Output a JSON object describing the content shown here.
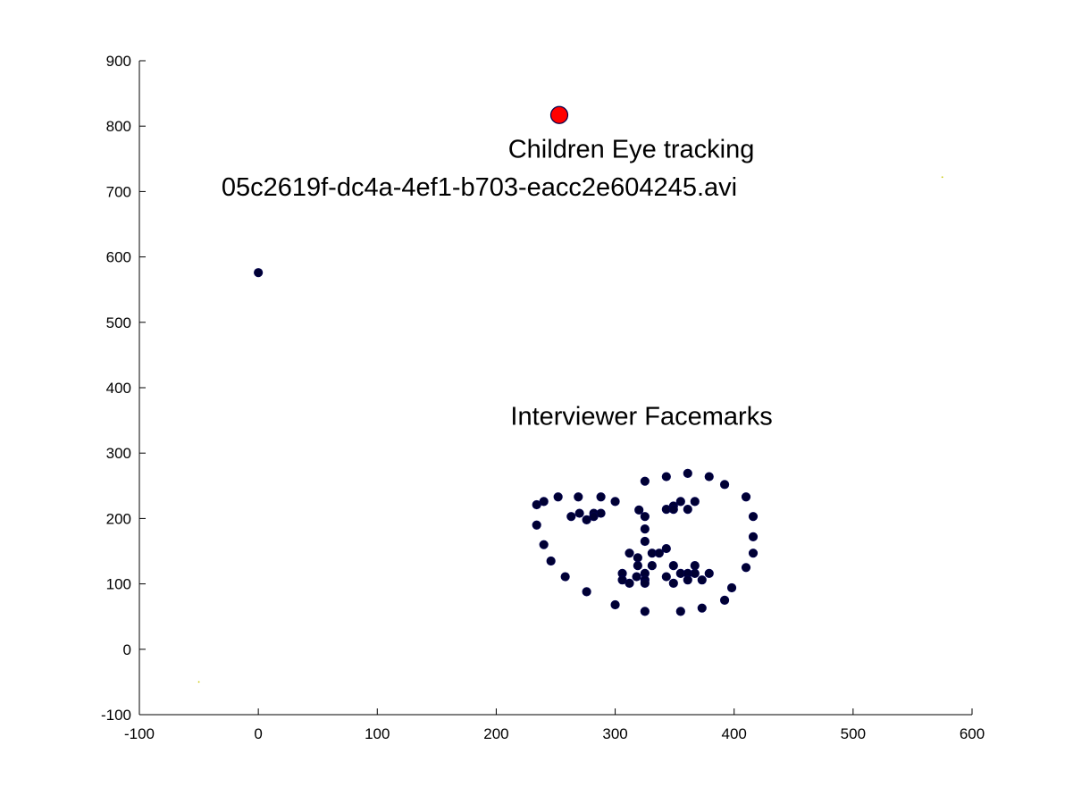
{
  "chart_data": {
    "type": "scatter",
    "xlim": [
      -100,
      600
    ],
    "ylim": [
      -100,
      900
    ],
    "xticks": [
      -100,
      0,
      100,
      200,
      300,
      400,
      500,
      600
    ],
    "yticks": [
      -100,
      0,
      100,
      200,
      300,
      400,
      500,
      600,
      700,
      800,
      900
    ],
    "xtick_labels": [
      "-100",
      "0",
      "100",
      "200",
      "300",
      "400",
      "500",
      "600"
    ],
    "ytick_labels": [
      "-100",
      "0",
      "100",
      "200",
      "300",
      "400",
      "500",
      "600",
      "700",
      "800",
      "900"
    ],
    "grid": false,
    "annotations": [
      {
        "text": "Children Eye tracking",
        "x": 210,
        "y": 752
      },
      {
        "text": "05c2619f-dc4a-4ef1-b703-eacc2e604245.avi",
        "x": -31,
        "y": 694
      },
      {
        "text": "Interviewer Facemarks",
        "x": 212,
        "y": 343
      }
    ],
    "series": [
      {
        "marker_color": "#ff0000",
        "marker_edge": "#00004a",
        "marker_size": "large",
        "points": [
          [
            253,
            817
          ]
        ]
      },
      {
        "marker_color": "#000033",
        "marker_edge": "#00004a",
        "marker_size": "small",
        "points": [
          [
            0,
            576
          ],
          [
            234,
            190
          ],
          [
            234,
            221
          ],
          [
            240,
            226
          ],
          [
            240,
            160
          ],
          [
            246,
            135
          ],
          [
            252,
            233
          ],
          [
            258,
            111
          ],
          [
            276,
            88
          ],
          [
            300,
            68
          ],
          [
            325,
            58
          ],
          [
            269,
            233
          ],
          [
            288,
            233
          ],
          [
            300,
            226
          ],
          [
            263,
            203
          ],
          [
            270,
            208
          ],
          [
            276,
            198
          ],
          [
            282,
            208
          ],
          [
            282,
            203
          ],
          [
            288,
            208
          ],
          [
            320,
            213
          ],
          [
            325,
            203
          ],
          [
            325,
            184
          ],
          [
            325,
            165
          ],
          [
            325,
            257
          ],
          [
            312,
            147
          ],
          [
            319,
            140
          ],
          [
            319,
            128
          ],
          [
            331,
            128
          ],
          [
            331,
            147
          ],
          [
            337,
            147
          ],
          [
            343,
            154
          ],
          [
            306,
            116
          ],
          [
            306,
            106
          ],
          [
            312,
            101
          ],
          [
            318,
            111
          ],
          [
            325,
            116
          ],
          [
            325,
            106
          ],
          [
            325,
            101
          ],
          [
            343,
            111
          ],
          [
            349,
            128
          ],
          [
            349,
            101
          ],
          [
            355,
            116
          ],
          [
            361,
            116
          ],
          [
            361,
            106
          ],
          [
            367,
            128
          ],
          [
            367,
            116
          ],
          [
            373,
            106
          ],
          [
            379,
            116
          ],
          [
            343,
            214
          ],
          [
            349,
            219
          ],
          [
            349,
            214
          ],
          [
            355,
            226
          ],
          [
            361,
            214
          ],
          [
            367,
            226
          ],
          [
            343,
            264
          ],
          [
            361,
            269
          ],
          [
            379,
            264
          ],
          [
            392,
            252
          ],
          [
            410,
            233
          ],
          [
            416,
            203
          ],
          [
            416,
            172
          ],
          [
            416,
            147
          ],
          [
            410,
            125
          ],
          [
            398,
            94
          ],
          [
            392,
            75
          ],
          [
            373,
            63
          ],
          [
            355,
            58
          ]
        ]
      },
      {
        "marker_color": "#c8c800",
        "marker_size": "tiny",
        "points": [
          [
            575,
            722
          ],
          [
            -50,
            -50
          ]
        ]
      }
    ]
  }
}
